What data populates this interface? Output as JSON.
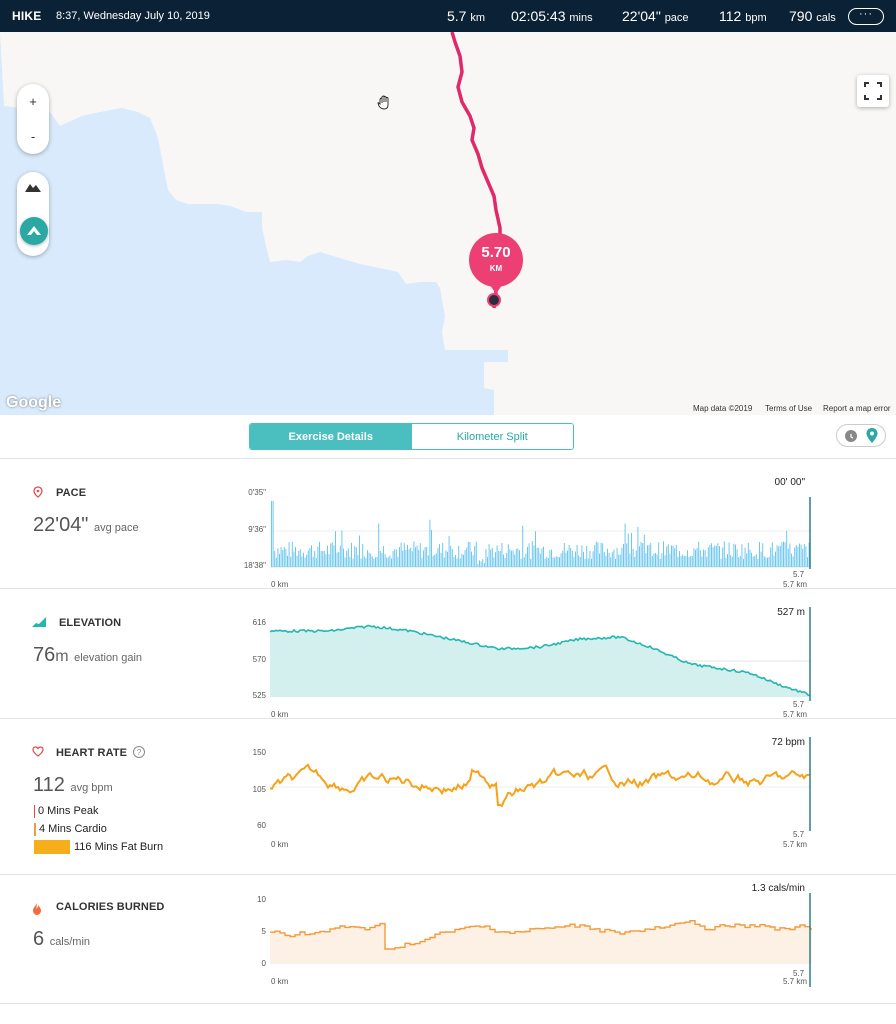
{
  "header": {
    "activity": "HIKE",
    "datetime": "8:37, Wednesday July 10, 2019",
    "distance_val": "5.7",
    "distance_unit": "km",
    "duration_val": "02:05:43",
    "duration_unit": "mins",
    "pace_val": "22'04\"",
    "pace_unit": "pace",
    "hr_val": "112",
    "hr_unit": "bpm",
    "cal_val": "790",
    "cal_unit": "cals",
    "more": "···"
  },
  "map": {
    "zoom_in": "+",
    "zoom_out": "-",
    "marker_value": "5.70",
    "marker_unit": "KM",
    "google": "Google",
    "map_data": "Map data ©2019",
    "terms": "Terms of Use",
    "report": "Report a map error",
    "colors": {
      "water": "#d8eafb",
      "land": "#f8f7f5",
      "route": "#e0286a"
    }
  },
  "tabs": {
    "details": "Exercise Details",
    "split": "Kilometer Split"
  },
  "pace": {
    "title": "PACE",
    "value": "22'04\"",
    "unit": "avg pace",
    "peak": "00' 00\"",
    "y_ticks": [
      "0'35\"",
      "9'36\"",
      "18'38\""
    ],
    "x_start": "0 km",
    "x_end": "5.7 km",
    "cursor": "5.7",
    "color": "#6dc7f2"
  },
  "elevation": {
    "title": "ELEVATION",
    "value": "76",
    "value_unit": "m",
    "unit": "elevation gain",
    "peak": "527 m",
    "y_ticks": [
      "616",
      "570",
      "525"
    ],
    "x_start": "0 km",
    "x_end": "5.7 km",
    "cursor": "5.7",
    "color": "#25b6b0"
  },
  "heart": {
    "title": "HEART RATE",
    "info": "?",
    "value": "112",
    "unit": "avg bpm",
    "peak": "72 bpm",
    "zones": [
      {
        "label": "0 Mins Peak",
        "color": "#e24b4b"
      },
      {
        "label": "4 Mins Cardio",
        "color": "#f39a3a"
      },
      {
        "label": "116 Mins Fat Burn",
        "color": "#f6ae1b"
      }
    ],
    "y_ticks": [
      "150",
      "105",
      "60"
    ],
    "x_start": "0 km",
    "x_end": "5.7 km",
    "cursor": "5.7",
    "color": "#f6a21b"
  },
  "calories": {
    "title": "CALORIES BURNED",
    "value": "6",
    "unit": "cals/min",
    "peak": "1.3 cals/min",
    "y_ticks": [
      "10",
      "5",
      "0"
    ],
    "x_start": "0 km",
    "x_end": "5.7 km",
    "cursor": "5.7",
    "color": "#f39a3a"
  }
}
